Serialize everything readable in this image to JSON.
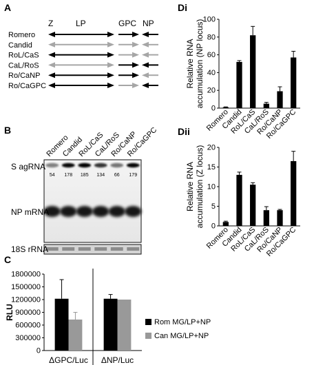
{
  "panel_labels": {
    "a": "A",
    "b": "B",
    "c": "C",
    "di": "Di",
    "dii": "Dii"
  },
  "panelA": {
    "segments": [
      "Z",
      "LP",
      "GPC",
      "NP"
    ],
    "constructs": [
      {
        "name": "Romero",
        "lp": "black",
        "z": "black",
        "gpc": "black",
        "np": "black"
      },
      {
        "name": "Candid",
        "lp": "gray",
        "z": "gray",
        "gpc": "gray",
        "np": "gray"
      },
      {
        "name": "RoL/CaS",
        "lp": "black",
        "z": "black",
        "gpc": "gray",
        "np": "gray"
      },
      {
        "name": "CaL/RoS",
        "lp": "gray",
        "z": "gray",
        "gpc": "black",
        "np": "black"
      },
      {
        "name": "Ro/CaNP",
        "lp": "black",
        "z": "black",
        "gpc": "black",
        "np": "gray"
      },
      {
        "name": "Ro/CaGPC",
        "lp": "black",
        "z": "black",
        "gpc": "gray",
        "np": "black"
      }
    ],
    "colors": {
      "black": "#000000",
      "gray": "#a6a6a6"
    }
  },
  "panelB": {
    "lanes": [
      "Romero",
      "Candid",
      "RoL/CaS",
      "CaL/RoS",
      "Ro/CaNP",
      "Ro/CaGPC"
    ],
    "quant": [
      "54",
      "178",
      "185",
      "134",
      "66",
      "179"
    ],
    "row_labels": {
      "s": "S agRNA",
      "np": "NP mRNA",
      "rrna": "18S rRNA"
    }
  },
  "chart_data": [
    {
      "type": "bar",
      "panel": "C",
      "ylabel": "RLU",
      "categories": [
        "ΔGPC/Luc",
        "ΔNP/Luc"
      ],
      "ylim": [
        0,
        1800000
      ],
      "yticks": [
        "0",
        "300000",
        "600000",
        "900000",
        "1200000",
        "1500000",
        "1800000"
      ],
      "series": [
        {
          "name": "Rom MG/LP+NP",
          "color": "#000000",
          "values": [
            1220000,
            1220000
          ],
          "errors": [
            450000,
            100000
          ]
        },
        {
          "name": "Can MG/LP+NP",
          "color": "#999999",
          "values": [
            730000,
            1200000
          ],
          "errors": [
            170000,
            0
          ]
        }
      ],
      "legend": "right"
    },
    {
      "type": "bar",
      "panel": "Di",
      "ylabel": "Relative RNA accumulation (NP locus)",
      "categories": [
        "Romero",
        "Candid",
        "RoL/CaS",
        "CaL/RoS",
        "Ro/CaNP",
        "Ro/CaGPC"
      ],
      "ylim": [
        0,
        100
      ],
      "yticks": [
        "0",
        "20",
        "40",
        "60",
        "80",
        "100"
      ],
      "values": [
        1,
        52,
        82,
        5,
        19,
        57
      ],
      "errors": [
        0.4,
        1.5,
        10,
        1.5,
        5,
        7
      ]
    },
    {
      "type": "bar",
      "panel": "Dii",
      "ylabel": "Relative RNA accumulation (Z locus)",
      "categories": [
        "Romero",
        "Candid",
        "RoL/CaS",
        "CaL/RoS",
        "Ro/CaNP",
        "Ro/CaGPC"
      ],
      "ylim": [
        0,
        20
      ],
      "yticks": [
        "0",
        "5",
        "10",
        "15",
        "20"
      ],
      "values": [
        1,
        13,
        10.5,
        4,
        4,
        16.5
      ],
      "errors": [
        0.2,
        0.7,
        0.5,
        0.9,
        0.2,
        2.5
      ]
    }
  ]
}
